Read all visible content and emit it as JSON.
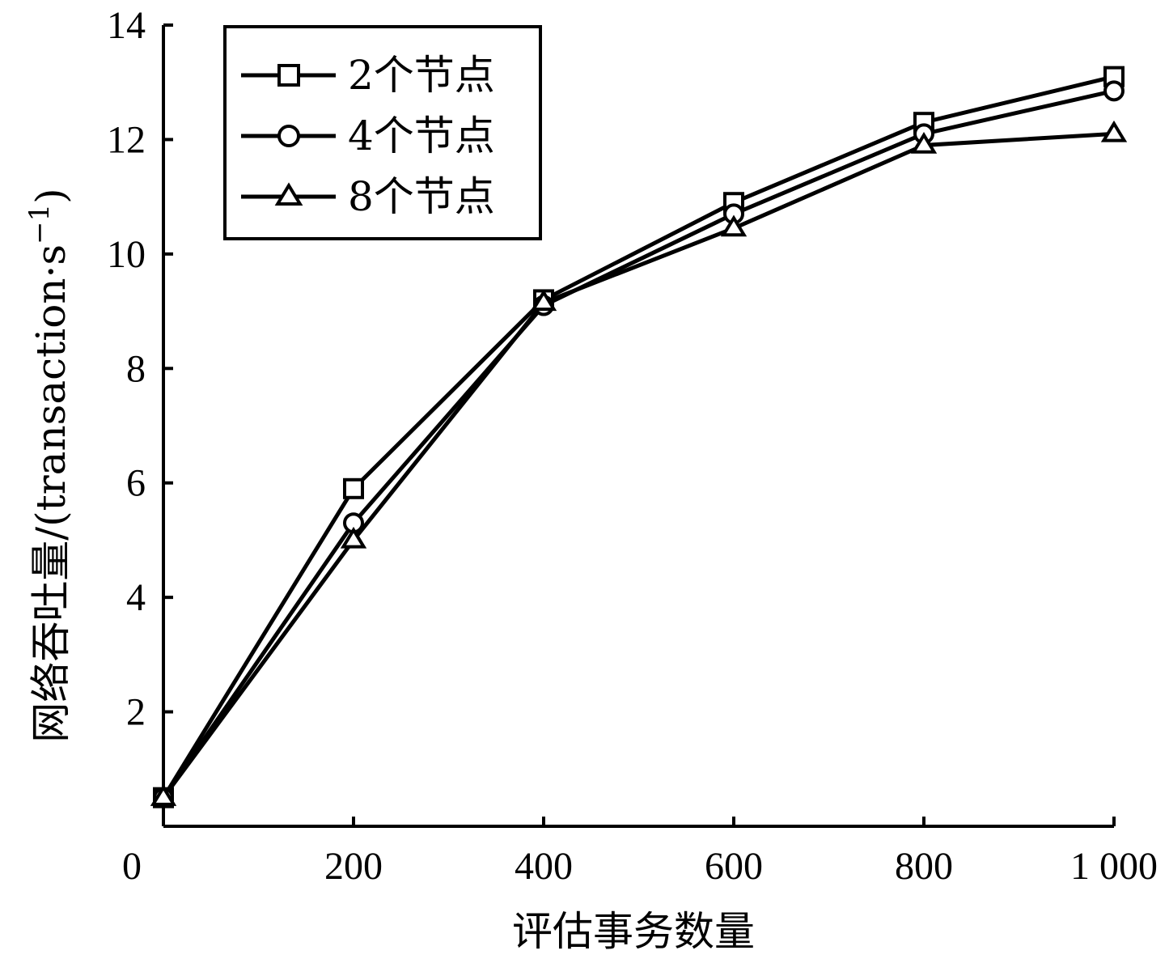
{
  "chart_data": {
    "type": "line",
    "title": "",
    "xlabel": "评估事务数量",
    "ylabel": "网络吞吐量/(transaction·s",
    "ylabel_sup": "−1",
    "ylabel_close": ")",
    "x": [
      0,
      200,
      400,
      600,
      800,
      1000
    ],
    "xlim": [
      0,
      1000
    ],
    "ylim": [
      0,
      14
    ],
    "x_tick_labels": [
      "0",
      "200",
      "400",
      "600",
      "800",
      "1 000"
    ],
    "y_tick_labels": [
      "2",
      "4",
      "6",
      "8",
      "10",
      "12",
      "14"
    ],
    "y_ticks": [
      2,
      4,
      6,
      8,
      10,
      12,
      14
    ],
    "grid": false,
    "legend_position": "top-left",
    "series": [
      {
        "name": "2个节点",
        "marker": "square",
        "values": [
          0.5,
          5.9,
          9.2,
          10.9,
          12.3,
          13.1
        ]
      },
      {
        "name": "4个节点",
        "marker": "circle",
        "values": [
          0.5,
          5.3,
          9.1,
          10.7,
          12.1,
          12.85
        ]
      },
      {
        "name": "8个节点",
        "marker": "triangle",
        "values": [
          0.5,
          5.0,
          9.15,
          10.45,
          11.9,
          12.1
        ]
      }
    ],
    "line_color": "#000000"
  }
}
